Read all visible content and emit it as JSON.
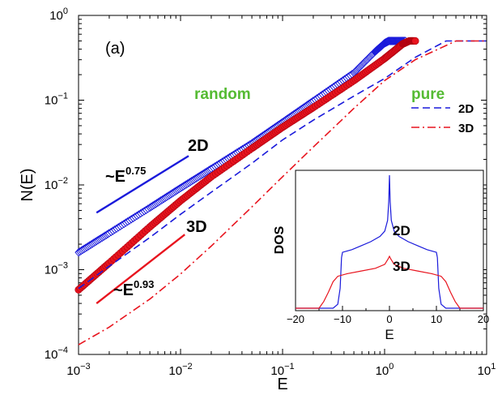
{
  "chart_data": {
    "type": "line",
    "panel_label": "(a)",
    "xlabel": "E",
    "ylabel": "N(E)",
    "xscale": "log",
    "yscale": "log",
    "xlim": [
      0.001,
      10
    ],
    "ylim": [
      0.0001,
      1
    ],
    "x_ticks": [
      {
        "base": "10",
        "exp": "−3"
      },
      {
        "base": "10",
        "exp": "−2"
      },
      {
        "base": "10",
        "exp": "−1"
      },
      {
        "base": "10",
        "exp": "0"
      },
      {
        "base": "10",
        "exp": "1"
      }
    ],
    "y_ticks": [
      {
        "base": "10",
        "exp": "−4"
      },
      {
        "base": "10",
        "exp": "−3"
      },
      {
        "base": "10",
        "exp": "−2"
      },
      {
        "base": "10",
        "exp": "−1"
      },
      {
        "base": "10",
        "exp": "0"
      }
    ],
    "group_labels": {
      "random": "random",
      "pure": "pure"
    },
    "colors": {
      "blue": "#1a1adb",
      "red": "#e8141e",
      "green": "#55bb33"
    },
    "series": [
      {
        "group": "random",
        "label": "2D",
        "marker": "diamond-open",
        "color": "#1a1adb",
        "points": [
          [
            0.001,
            0.0016
          ],
          [
            0.002,
            0.0027
          ],
          [
            0.005,
            0.0054
          ],
          [
            0.01,
            0.0092
          ],
          [
            0.02,
            0.0155
          ],
          [
            0.05,
            0.031
          ],
          [
            0.1,
            0.055
          ],
          [
            0.2,
            0.098
          ],
          [
            0.5,
            0.21
          ],
          [
            0.8,
            0.37
          ],
          [
            1.0,
            0.47
          ],
          [
            1.1,
            0.5
          ],
          [
            1.6,
            0.5
          ]
        ]
      },
      {
        "group": "random",
        "label": "3D",
        "marker": "circle-filled",
        "color": "#e8141e",
        "points": [
          [
            0.001,
            0.00058
          ],
          [
            0.002,
            0.0012
          ],
          [
            0.005,
            0.0032
          ],
          [
            0.01,
            0.0065
          ],
          [
            0.02,
            0.0125
          ],
          [
            0.05,
            0.027
          ],
          [
            0.1,
            0.048
          ],
          [
            0.2,
            0.082
          ],
          [
            0.5,
            0.17
          ],
          [
            1.0,
            0.31
          ],
          [
            1.5,
            0.46
          ],
          [
            1.75,
            0.5
          ],
          [
            2.0,
            0.5
          ]
        ]
      },
      {
        "group": "pure",
        "label": "2D",
        "line": "dashed",
        "color": "#1a1adb",
        "points": [
          [
            0.001,
            0.0006
          ],
          [
            0.002,
            0.0011
          ],
          [
            0.005,
            0.0024
          ],
          [
            0.01,
            0.0045
          ],
          [
            0.02,
            0.0082
          ],
          [
            0.05,
            0.018
          ],
          [
            0.1,
            0.034
          ],
          [
            0.2,
            0.058
          ],
          [
            0.5,
            0.112
          ],
          [
            1.0,
            0.18
          ],
          [
            2.0,
            0.32
          ],
          [
            4.0,
            0.5
          ],
          [
            10,
            0.5
          ]
        ]
      },
      {
        "group": "pure",
        "label": "3D",
        "line": "dash-dot",
        "color": "#e8141e",
        "points": [
          [
            0.001,
            0.00013
          ],
          [
            0.002,
            0.00021
          ],
          [
            0.005,
            0.00045
          ],
          [
            0.01,
            0.00089
          ],
          [
            0.02,
            0.0019
          ],
          [
            0.05,
            0.0055
          ],
          [
            0.1,
            0.0125
          ],
          [
            0.2,
            0.028
          ],
          [
            0.5,
            0.08
          ],
          [
            1.0,
            0.17
          ],
          [
            2.0,
            0.3
          ],
          [
            5.0,
            0.5
          ],
          [
            10,
            0.5
          ]
        ]
      }
    ],
    "power_law_guides": [
      {
        "dim": "2D",
        "label": "~E",
        "exponent": "0.75",
        "color": "#1a1adb",
        "x": [
          0.0015,
          0.012
        ],
        "y": [
          0.0047,
          0.022
        ]
      },
      {
        "dim": "3D",
        "label": "~E",
        "exponent": "0.93",
        "color": "#e8141e",
        "x": [
          0.0015,
          0.011
        ],
        "y": [
          0.0004,
          0.0026
        ]
      }
    ],
    "inset": {
      "xlabel": "E",
      "ylabel": "DOS",
      "xlim": [
        -20,
        20
      ],
      "x_ticks": [
        "−20",
        "−10",
        "0",
        "10",
        "20"
      ],
      "curve_labels": {
        "two_d": "2D",
        "three_d": "3D"
      },
      "series": [
        {
          "label": "2D",
          "color": "#1a1adb",
          "points": [
            [
              -20,
              0
            ],
            [
              -12,
              0
            ],
            [
              -11,
              0.03
            ],
            [
              -10.5,
              0.15
            ],
            [
              -10.2,
              0.38
            ],
            [
              -10,
              0.42
            ],
            [
              -8,
              0.44
            ],
            [
              -6,
              0.47
            ],
            [
              -4,
              0.5
            ],
            [
              -2,
              0.54
            ],
            [
              -1,
              0.58
            ],
            [
              -0.4,
              0.66
            ],
            [
              -0.15,
              0.8
            ],
            [
              0,
              1.0
            ],
            [
              0.15,
              0.8
            ],
            [
              0.4,
              0.66
            ],
            [
              1,
              0.58
            ],
            [
              2,
              0.54
            ],
            [
              4,
              0.5
            ],
            [
              6,
              0.47
            ],
            [
              8,
              0.44
            ],
            [
              10,
              0.42
            ],
            [
              10.2,
              0.38
            ],
            [
              10.5,
              0.15
            ],
            [
              11,
              0.03
            ],
            [
              12,
              0
            ],
            [
              20,
              0
            ]
          ]
        },
        {
          "label": "3D",
          "color": "#e8141e",
          "points": [
            [
              -20,
              0
            ],
            [
              -15,
              0
            ],
            [
              -14,
              0.05
            ],
            [
              -13,
              0.12
            ],
            [
              -12,
              0.2
            ],
            [
              -11,
              0.24
            ],
            [
              -9,
              0.26
            ],
            [
              -6,
              0.28
            ],
            [
              -3,
              0.3
            ],
            [
              -1,
              0.33
            ],
            [
              -0.3,
              0.37
            ],
            [
              0,
              0.39
            ],
            [
              0.3,
              0.37
            ],
            [
              1,
              0.33
            ],
            [
              3,
              0.3
            ],
            [
              6,
              0.28
            ],
            [
              9,
              0.26
            ],
            [
              11,
              0.24
            ],
            [
              12,
              0.2
            ],
            [
              13,
              0.12
            ],
            [
              14,
              0.05
            ],
            [
              15,
              0
            ],
            [
              20,
              0
            ]
          ]
        }
      ]
    }
  }
}
